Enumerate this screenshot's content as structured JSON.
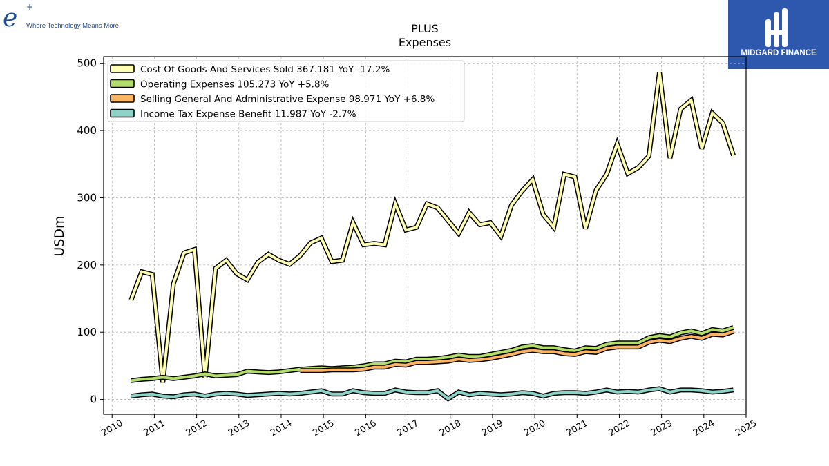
{
  "branding": {
    "left_logo_symbol": "e",
    "left_logo_sup": "+",
    "left_logo_tagline": "Where Technology Means More",
    "right_logo_text": "MIDGARD FINANCE",
    "right_logo_bg": "#2d58ad"
  },
  "chart_data": {
    "type": "line",
    "title": "PLUS",
    "subtitle": "Expenses",
    "ylabel": "USDm",
    "xlabel": "",
    "xlim": [
      2009.8,
      2025.0
    ],
    "ylim": [
      -22,
      510
    ],
    "x_ticks": [
      "2010",
      "2011",
      "2012",
      "2013",
      "2014",
      "2015",
      "2016",
      "2017",
      "2018",
      "2019",
      "2020",
      "2021",
      "2022",
      "2023",
      "2024",
      "2025"
    ],
    "y_ticks": [
      "0",
      "100",
      "200",
      "300",
      "400",
      "500"
    ],
    "grid": true,
    "legend_position": "top-left",
    "series": [
      {
        "name": "Cost Of Goods And Services Sold  367.181 YoY -17.2%",
        "color": "#ffffb3",
        "points": [
          [
            2010.45,
            148
          ],
          [
            2010.7,
            190
          ],
          [
            2010.95,
            186
          ],
          [
            2011.2,
            25
          ],
          [
            2011.45,
            172
          ],
          [
            2011.7,
            218
          ],
          [
            2011.95,
            223
          ],
          [
            2012.2,
            32
          ],
          [
            2012.45,
            195
          ],
          [
            2012.7,
            207
          ],
          [
            2012.95,
            187
          ],
          [
            2013.2,
            178
          ],
          [
            2013.45,
            204
          ],
          [
            2013.7,
            216
          ],
          [
            2013.95,
            207
          ],
          [
            2014.2,
            201
          ],
          [
            2014.45,
            214
          ],
          [
            2014.7,
            233
          ],
          [
            2014.95,
            240
          ],
          [
            2015.2,
            205
          ],
          [
            2015.45,
            207
          ],
          [
            2015.7,
            263
          ],
          [
            2015.95,
            230
          ],
          [
            2016.2,
            232
          ],
          [
            2016.45,
            230
          ],
          [
            2016.7,
            291
          ],
          [
            2016.95,
            252
          ],
          [
            2017.2,
            256
          ],
          [
            2017.45,
            291
          ],
          [
            2017.7,
            285
          ],
          [
            2017.95,
            266
          ],
          [
            2018.2,
            247
          ],
          [
            2018.45,
            278
          ],
          [
            2018.7,
            260
          ],
          [
            2018.95,
            263
          ],
          [
            2019.2,
            243
          ],
          [
            2019.45,
            289
          ],
          [
            2019.7,
            310
          ],
          [
            2019.95,
            327
          ],
          [
            2020.2,
            275
          ],
          [
            2020.45,
            256
          ],
          [
            2020.7,
            335
          ],
          [
            2020.95,
            331
          ],
          [
            2021.2,
            254
          ],
          [
            2021.45,
            311
          ],
          [
            2021.7,
            335
          ],
          [
            2021.95,
            380
          ],
          [
            2022.2,
            336
          ],
          [
            2022.45,
            345
          ],
          [
            2022.7,
            362
          ],
          [
            2022.95,
            487
          ],
          [
            2023.2,
            359
          ],
          [
            2023.45,
            432
          ],
          [
            2023.7,
            445
          ],
          [
            2023.95,
            373
          ],
          [
            2024.2,
            426
          ],
          [
            2024.45,
            411
          ],
          [
            2024.7,
            363
          ]
        ]
      },
      {
        "name": "Operating Expenses  105.273 YoY +5.8%",
        "color": "#b3de69",
        "points": [
          [
            2010.45,
            28
          ],
          [
            2010.7,
            30
          ],
          [
            2010.95,
            31
          ],
          [
            2011.2,
            33
          ],
          [
            2011.45,
            31
          ],
          [
            2011.7,
            33
          ],
          [
            2011.95,
            35
          ],
          [
            2012.2,
            38
          ],
          [
            2012.45,
            35
          ],
          [
            2012.7,
            36
          ],
          [
            2012.95,
            37
          ],
          [
            2013.2,
            42
          ],
          [
            2013.45,
            41
          ],
          [
            2013.7,
            40
          ],
          [
            2013.95,
            41
          ],
          [
            2014.2,
            43
          ],
          [
            2014.45,
            45
          ],
          [
            2014.7,
            46
          ],
          [
            2014.95,
            47
          ],
          [
            2015.2,
            46
          ],
          [
            2015.45,
            47
          ],
          [
            2015.7,
            48
          ],
          [
            2015.95,
            50
          ],
          [
            2016.2,
            53
          ],
          [
            2016.45,
            53
          ],
          [
            2016.7,
            57
          ],
          [
            2016.95,
            56
          ],
          [
            2017.2,
            60
          ],
          [
            2017.45,
            60
          ],
          [
            2017.7,
            61
          ],
          [
            2017.95,
            63
          ],
          [
            2018.2,
            66
          ],
          [
            2018.45,
            64
          ],
          [
            2018.7,
            64
          ],
          [
            2018.95,
            67
          ],
          [
            2019.2,
            70
          ],
          [
            2019.45,
            73
          ],
          [
            2019.7,
            78
          ],
          [
            2019.95,
            80
          ],
          [
            2020.2,
            77
          ],
          [
            2020.45,
            77
          ],
          [
            2020.7,
            74
          ],
          [
            2020.95,
            72
          ],
          [
            2021.2,
            77
          ],
          [
            2021.45,
            76
          ],
          [
            2021.7,
            82
          ],
          [
            2021.95,
            84
          ],
          [
            2022.2,
            84
          ],
          [
            2022.45,
            84
          ],
          [
            2022.7,
            92
          ],
          [
            2022.95,
            95
          ],
          [
            2023.2,
            93
          ],
          [
            2023.45,
            99
          ],
          [
            2023.7,
            102
          ],
          [
            2023.95,
            98
          ],
          [
            2024.2,
            104
          ],
          [
            2024.45,
            102
          ],
          [
            2024.7,
            107
          ]
        ]
      },
      {
        "name": "Selling General And Administrative Expense  98.971 YoY +6.8%",
        "color": "#fdb462",
        "points": [
          [
            2014.45,
            43
          ],
          [
            2014.7,
            43
          ],
          [
            2014.95,
            43
          ],
          [
            2015.2,
            44
          ],
          [
            2015.45,
            44
          ],
          [
            2015.7,
            44
          ],
          [
            2015.95,
            45
          ],
          [
            2016.2,
            48
          ],
          [
            2016.45,
            48
          ],
          [
            2016.7,
            52
          ],
          [
            2016.95,
            51
          ],
          [
            2017.2,
            55
          ],
          [
            2017.45,
            55
          ],
          [
            2017.7,
            56
          ],
          [
            2017.95,
            57
          ],
          [
            2018.2,
            60
          ],
          [
            2018.45,
            58
          ],
          [
            2018.7,
            59
          ],
          [
            2018.95,
            61
          ],
          [
            2019.2,
            64
          ],
          [
            2019.45,
            67
          ],
          [
            2019.7,
            71
          ],
          [
            2019.95,
            73
          ],
          [
            2020.2,
            71
          ],
          [
            2020.45,
            71
          ],
          [
            2020.7,
            68
          ],
          [
            2020.95,
            67
          ],
          [
            2021.2,
            71
          ],
          [
            2021.45,
            70
          ],
          [
            2021.7,
            76
          ],
          [
            2021.95,
            78
          ],
          [
            2022.2,
            78
          ],
          [
            2022.45,
            78
          ],
          [
            2022.7,
            85
          ],
          [
            2022.95,
            88
          ],
          [
            2023.2,
            86
          ],
          [
            2023.45,
            91
          ],
          [
            2023.7,
            94
          ],
          [
            2023.95,
            91
          ],
          [
            2024.2,
            97
          ],
          [
            2024.45,
            96
          ],
          [
            2024.7,
            101
          ]
        ]
      },
      {
        "name": "Income Tax Expense Benefit  11.987 YoY -2.7%",
        "color": "#8dd3c7",
        "points": [
          [
            2010.45,
            5
          ],
          [
            2010.7,
            7
          ],
          [
            2010.95,
            8
          ],
          [
            2011.2,
            5
          ],
          [
            2011.45,
            4
          ],
          [
            2011.7,
            7
          ],
          [
            2011.95,
            8
          ],
          [
            2012.2,
            5
          ],
          [
            2012.45,
            8
          ],
          [
            2012.7,
            9
          ],
          [
            2012.95,
            8
          ],
          [
            2013.2,
            6
          ],
          [
            2013.45,
            7
          ],
          [
            2013.7,
            8
          ],
          [
            2013.95,
            9
          ],
          [
            2014.2,
            8
          ],
          [
            2014.45,
            9
          ],
          [
            2014.7,
            11
          ],
          [
            2014.95,
            13
          ],
          [
            2015.2,
            8
          ],
          [
            2015.45,
            8
          ],
          [
            2015.7,
            13
          ],
          [
            2015.95,
            10
          ],
          [
            2016.2,
            9
          ],
          [
            2016.45,
            9
          ],
          [
            2016.7,
            14
          ],
          [
            2016.95,
            11
          ],
          [
            2017.2,
            10
          ],
          [
            2017.45,
            10
          ],
          [
            2017.7,
            13
          ],
          [
            2017.95,
            1
          ],
          [
            2018.2,
            11
          ],
          [
            2018.45,
            7
          ],
          [
            2018.7,
            9
          ],
          [
            2018.95,
            8
          ],
          [
            2019.2,
            7
          ],
          [
            2019.45,
            8
          ],
          [
            2019.7,
            10
          ],
          [
            2019.95,
            9
          ],
          [
            2020.2,
            5
          ],
          [
            2020.45,
            9
          ],
          [
            2020.7,
            10
          ],
          [
            2020.95,
            10
          ],
          [
            2021.2,
            9
          ],
          [
            2021.45,
            11
          ],
          [
            2021.7,
            14
          ],
          [
            2021.95,
            11
          ],
          [
            2022.2,
            12
          ],
          [
            2022.45,
            11
          ],
          [
            2022.7,
            14
          ],
          [
            2022.95,
            16
          ],
          [
            2023.2,
            11
          ],
          [
            2023.45,
            14
          ],
          [
            2023.7,
            14
          ],
          [
            2023.95,
            13
          ],
          [
            2024.2,
            11
          ],
          [
            2024.45,
            12
          ],
          [
            2024.7,
            14
          ]
        ]
      }
    ]
  }
}
